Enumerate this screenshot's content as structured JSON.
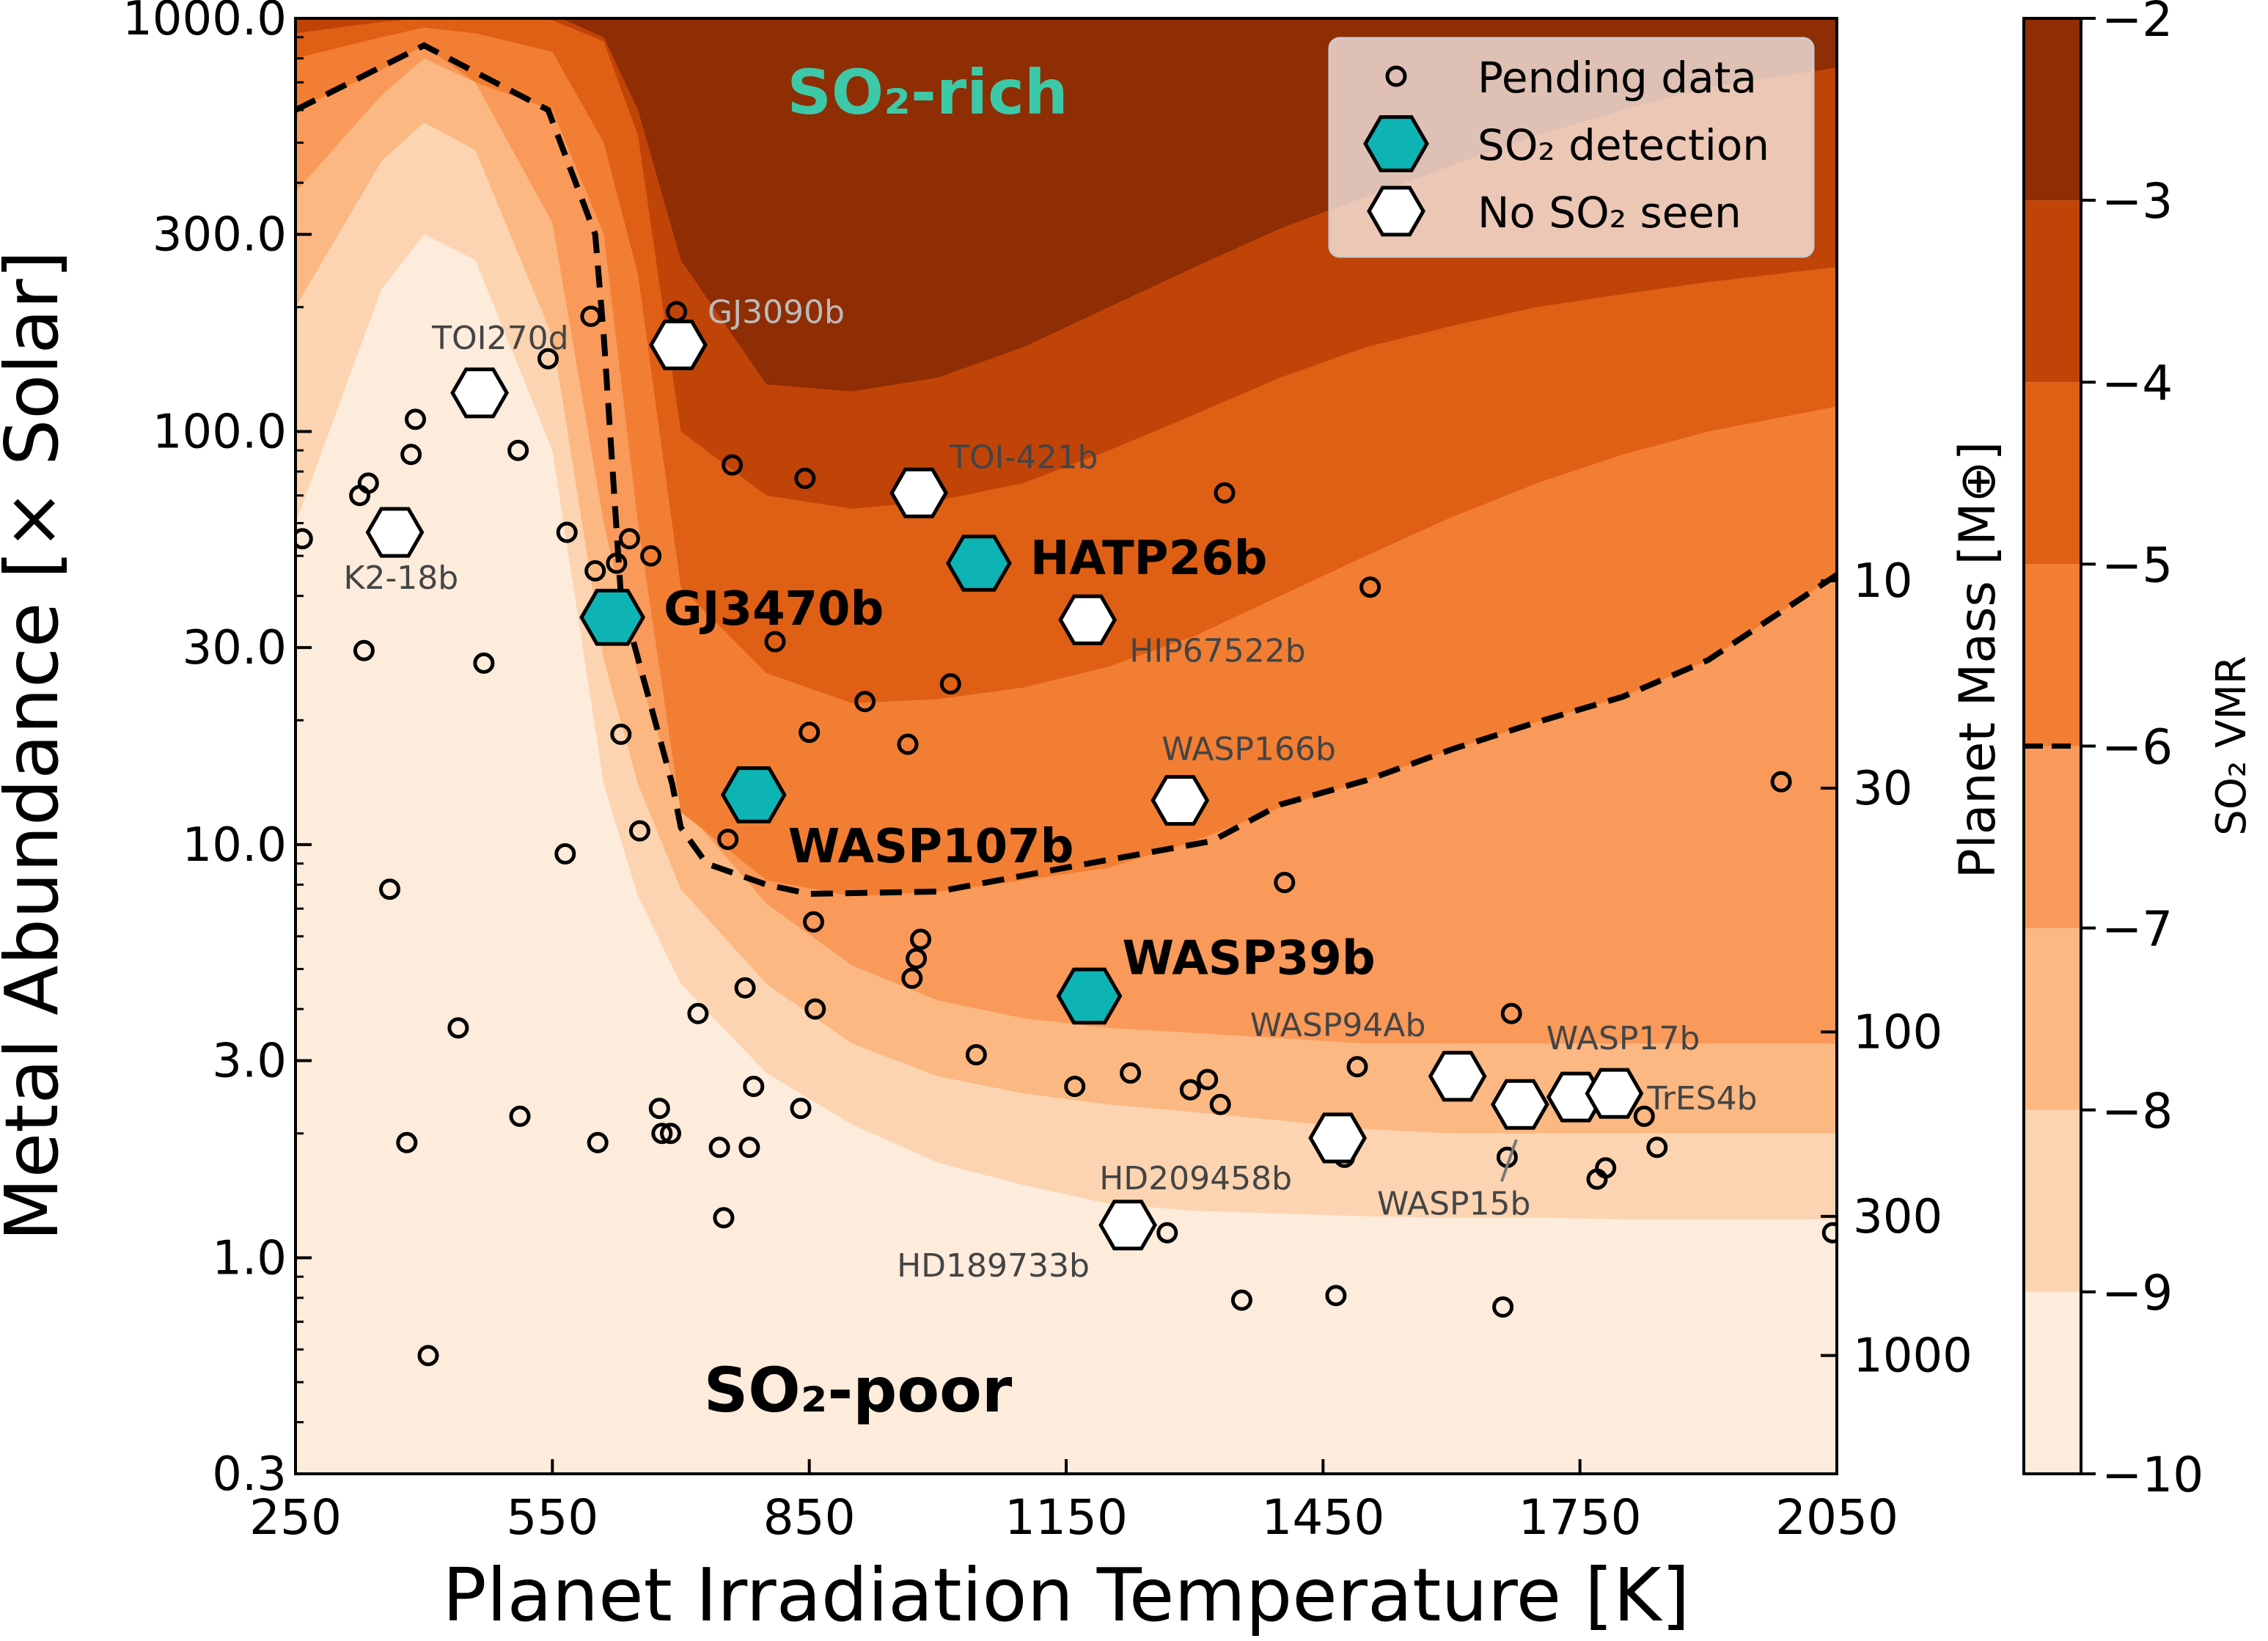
{
  "chart_data": {
    "type": "contour-scatter",
    "xlabel": "Planet Irradiation Temperature [K]",
    "ylabel": "Metal Abundance [× Solar]",
    "y2label": "Planet Mass [M⊕]",
    "colorbar_label": "SO₂ VMR",
    "xlim": [
      250,
      2050
    ],
    "ylim": [
      0.3,
      1000
    ],
    "yscale": "log",
    "x_ticks": [
      "250",
      "550",
      "850",
      "1150",
      "1450",
      "1750",
      "2050"
    ],
    "y_ticks": [
      {
        "value": 1000,
        "label": "1000.0"
      },
      {
        "value": 300,
        "label": "300.0"
      },
      {
        "value": 100,
        "label": "100.0"
      },
      {
        "value": 30,
        "label": "30.0"
      },
      {
        "value": 10,
        "label": "10.0"
      },
      {
        "value": 3,
        "label": "3.0"
      },
      {
        "value": 1,
        "label": "1.0"
      },
      {
        "value": 0.3,
        "label": "0.3"
      }
    ],
    "mass_ticks": [
      {
        "label": "10",
        "at_metallicity": 43.5
      },
      {
        "label": "30",
        "at_metallicity": 13.7
      },
      {
        "label": "100",
        "at_metallicity": 3.52
      },
      {
        "label": "300",
        "at_metallicity": 1.26
      },
      {
        "label": "1000",
        "at_metallicity": 0.58
      }
    ],
    "colorbar": {
      "levels": [
        -10,
        -9,
        -8,
        -7,
        -6,
        -5,
        -4,
        -3,
        -2
      ],
      "tick_labels": [
        "−10",
        "−9",
        "−8",
        "−7",
        "−6",
        "−5",
        "−4",
        "−3",
        "−2"
      ],
      "colors": [
        "#fdebdc",
        "#fcd4b1",
        "#fbb882",
        "#f9995a",
        "#f27e33",
        "#df5f14",
        "#c04407",
        "#8f2d04"
      ],
      "dashed_level": -6
    },
    "contours": [
      {
        "level": -9,
        "x": [
          250,
          350,
          400,
          460,
          550,
          610,
          650,
          700,
          800,
          900,
          1000,
          1100,
          1200,
          1300,
          1400,
          1500,
          1600,
          1700,
          1800,
          1900,
          2050
        ],
        "y": [
          60,
          220,
          300,
          260,
          90,
          14,
          7.5,
          4.6,
          2.8,
          2.1,
          1.7,
          1.5,
          1.35,
          1.3,
          1.28,
          1.26,
          1.25,
          1.25,
          1.24,
          1.24,
          1.24
        ]
      },
      {
        "level": -8,
        "x": [
          250,
          350,
          400,
          460,
          550,
          610,
          650,
          700,
          800,
          900,
          1000,
          1100,
          1200,
          1300,
          1400,
          1500,
          1600,
          1700,
          1800,
          1900,
          2050
        ],
        "y": [
          200,
          450,
          560,
          480,
          170,
          28,
          14,
          7.8,
          4.6,
          3.3,
          2.75,
          2.5,
          2.35,
          2.25,
          2.15,
          2.05,
          2.0,
          2.0,
          2.0,
          2.0,
          2.0
        ]
      },
      {
        "level": -7,
        "x": [
          250,
          350,
          400,
          460,
          550,
          610,
          650,
          700,
          800,
          900,
          1000,
          1100,
          1200,
          1300,
          1400,
          1500,
          1600,
          1700,
          1800,
          1900,
          2050
        ],
        "y": [
          380,
          650,
          800,
          700,
          320,
          60,
          26,
          12.5,
          7.2,
          5.1,
          4.2,
          3.8,
          3.6,
          3.5,
          3.4,
          3.3,
          3.3,
          3.3,
          3.3,
          3.3,
          3.3
        ]
      },
      {
        "level": -6,
        "x": [
          250,
          350,
          400,
          460,
          550,
          610,
          650,
          700,
          800,
          900,
          1000,
          1100,
          1200,
          1300,
          1400,
          1500,
          1600,
          1700,
          1800,
          1900,
          2050
        ],
        "y": [
          600,
          750,
          860,
          700,
          600,
          300,
          60,
          12,
          8.2,
          7.5,
          7.7,
          8.2,
          8.8,
          10.2,
          12.3,
          14.3,
          17,
          19.8,
          22.8,
          28,
          45
        ]
      },
      {
        "level": -5,
        "x": [
          250,
          350,
          400,
          460,
          550,
          610,
          650,
          700,
          800,
          900,
          1000,
          1100,
          1200,
          1300,
          1400,
          1500,
          1600,
          1700,
          1800,
          1900,
          2050
        ],
        "y": [
          800,
          900,
          950,
          920,
          830,
          500,
          240,
          42,
          26,
          22,
          22.5,
          24,
          27,
          32,
          40,
          50,
          62,
          75,
          88,
          100,
          115
        ]
      },
      {
        "level": -4,
        "x": [
          250,
          350,
          400,
          460,
          550,
          610,
          650,
          700,
          800,
          900,
          1000,
          1100,
          1200,
          1300,
          1400,
          1500,
          1600,
          1700,
          1800,
          1900,
          2050
        ],
        "y": [
          920,
          980,
          1000,
          1000,
          990,
          880,
          520,
          100,
          70,
          65,
          68,
          75,
          90,
          110,
          135,
          160,
          180,
          200,
          215,
          230,
          250
        ]
      },
      {
        "level": -3,
        "x": [
          560,
          610,
          650,
          700,
          800,
          900,
          1000,
          1100,
          1200,
          1300,
          1400,
          1500,
          1600,
          1700,
          1800,
          1900,
          2050
        ],
        "y": [
          1000,
          900,
          600,
          260,
          130,
          125,
          135,
          160,
          200,
          250,
          310,
          370,
          440,
          520,
          600,
          680,
          760
        ]
      }
    ],
    "dashed_boundary": {
      "level": -6,
      "x": [
        250,
        400,
        545,
        600,
        610,
        630,
        690,
        700,
        730,
        800,
        850,
        1000,
        1150,
        1250,
        1320,
        1400,
        1500,
        1600,
        1700,
        1800,
        1900,
        2050
      ],
      "y": [
        600,
        860,
        600,
        300,
        170,
        40,
        14,
        11,
        9,
        8,
        7.6,
        7.7,
        8.8,
        9.6,
        10.2,
        12.5,
        14.3,
        17,
        19.8,
        22.8,
        28,
        45
      ]
    },
    "series": [
      {
        "name": "Pending data",
        "marker": "circle",
        "points": [
          {
            "x": 258,
            "y": 55
          },
          {
            "x": 325,
            "y": 70
          },
          {
            "x": 335,
            "y": 75
          },
          {
            "x": 330,
            "y": 29.5
          },
          {
            "x": 360,
            "y": 7.8
          },
          {
            "x": 380,
            "y": 1.9
          },
          {
            "x": 385,
            "y": 88
          },
          {
            "x": 390,
            "y": 107
          },
          {
            "x": 405,
            "y": 0.58
          },
          {
            "x": 440,
            "y": 3.6
          },
          {
            "x": 470,
            "y": 27.5
          },
          {
            "x": 510,
            "y": 90
          },
          {
            "x": 512,
            "y": 2.2
          },
          {
            "x": 545,
            "y": 150
          },
          {
            "x": 565,
            "y": 9.5
          },
          {
            "x": 567,
            "y": 57
          },
          {
            "x": 595,
            "y": 190
          },
          {
            "x": 600,
            "y": 46
          },
          {
            "x": 603,
            "y": 1.9
          },
          {
            "x": 625,
            "y": 48
          },
          {
            "x": 630,
            "y": 18.5
          },
          {
            "x": 640,
            "y": 55
          },
          {
            "x": 652,
            "y": 10.8
          },
          {
            "x": 665,
            "y": 50
          },
          {
            "x": 675,
            "y": 2.3
          },
          {
            "x": 678,
            "y": 2.0
          },
          {
            "x": 688,
            "y": 2.0
          },
          {
            "x": 695,
            "y": 195
          },
          {
            "x": 720,
            "y": 3.9
          },
          {
            "x": 745,
            "y": 1.85
          },
          {
            "x": 750,
            "y": 1.25
          },
          {
            "x": 755,
            "y": 10.3
          },
          {
            "x": 760,
            "y": 83
          },
          {
            "x": 775,
            "y": 4.5
          },
          {
            "x": 780,
            "y": 1.85
          },
          {
            "x": 785,
            "y": 2.6
          },
          {
            "x": 810,
            "y": 31
          },
          {
            "x": 840,
            "y": 2.3
          },
          {
            "x": 845,
            "y": 77
          },
          {
            "x": 850,
            "y": 18.7
          },
          {
            "x": 855,
            "y": 6.5
          },
          {
            "x": 857,
            "y": 4.0
          },
          {
            "x": 915,
            "y": 22.2
          },
          {
            "x": 965,
            "y": 17.5
          },
          {
            "x": 970,
            "y": 4.75
          },
          {
            "x": 975,
            "y": 5.3
          },
          {
            "x": 980,
            "y": 5.9
          },
          {
            "x": 1015,
            "y": 24.5
          },
          {
            "x": 1045,
            "y": 3.1
          },
          {
            "x": 1160,
            "y": 2.6
          },
          {
            "x": 1225,
            "y": 2.8
          },
          {
            "x": 1268,
            "y": 1.15
          },
          {
            "x": 1295,
            "y": 2.55
          },
          {
            "x": 1315,
            "y": 2.7
          },
          {
            "x": 1330,
            "y": 2.35
          },
          {
            "x": 1335,
            "y": 71
          },
          {
            "x": 1355,
            "y": 0.79
          },
          {
            "x": 1405,
            "y": 8.1
          },
          {
            "x": 1465,
            "y": 0.81
          },
          {
            "x": 1475,
            "y": 1.75
          },
          {
            "x": 1490,
            "y": 2.9
          },
          {
            "x": 1505,
            "y": 42
          },
          {
            "x": 1660,
            "y": 0.76
          },
          {
            "x": 1665,
            "y": 1.75
          },
          {
            "x": 1670,
            "y": 3.9
          },
          {
            "x": 1770,
            "y": 1.55
          },
          {
            "x": 1780,
            "y": 1.65
          },
          {
            "x": 1825,
            "y": 2.2
          },
          {
            "x": 1840,
            "y": 1.85
          },
          {
            "x": 1985,
            "y": 14.2
          },
          {
            "x": 2045,
            "y": 1.15
          }
        ]
      },
      {
        "name": "SO₂ detection",
        "marker": "hexagon",
        "color": "#0eb4b4",
        "points": [
          {
            "x": 620,
            "y": 35.5,
            "label": "GJ3470b"
          },
          {
            "x": 1048,
            "y": 48,
            "label": "HATP26b"
          },
          {
            "x": 785,
            "y": 13.2,
            "label": "WASP107b"
          },
          {
            "x": 1177,
            "y": 4.3,
            "label": "WASP39b"
          }
        ]
      },
      {
        "name": "No SO₂ seen",
        "marker": "hexagon",
        "color": "#ffffff",
        "points": [
          {
            "x": 465,
            "y": 124,
            "label": "TOI270d"
          },
          {
            "x": 366,
            "y": 57,
            "label": "K2-18b"
          },
          {
            "x": 697,
            "y": 162,
            "label": "GJ3090b"
          },
          {
            "x": 978,
            "y": 71,
            "label": "TOI-421b"
          },
          {
            "x": 1175,
            "y": 35,
            "label": "HIP67522b"
          },
          {
            "x": 1283,
            "y": 12.8,
            "label": "WASP166b"
          },
          {
            "x": 1607,
            "y": 2.75,
            "label": "WASP94Ab"
          },
          {
            "x": 1680,
            "y": 2.35,
            "label": "WASP15b"
          },
          {
            "x": 1745,
            "y": 2.45,
            "label": "WASP17b"
          },
          {
            "x": 1790,
            "y": 2.5,
            "label": "TrES4b"
          },
          {
            "x": 1467,
            "y": 1.95,
            "label": "HD209458b"
          },
          {
            "x": 1222,
            "y": 1.2,
            "label": "HD189733b"
          }
        ]
      }
    ],
    "region_labels": {
      "rich": "SO₂-rich",
      "poor": "SO₂-poor"
    }
  },
  "legend": {
    "placement": "top-right",
    "items": [
      {
        "label": "Pending data"
      },
      {
        "label": "SO₂ detection"
      },
      {
        "label": "No SO₂ seen"
      }
    ]
  }
}
